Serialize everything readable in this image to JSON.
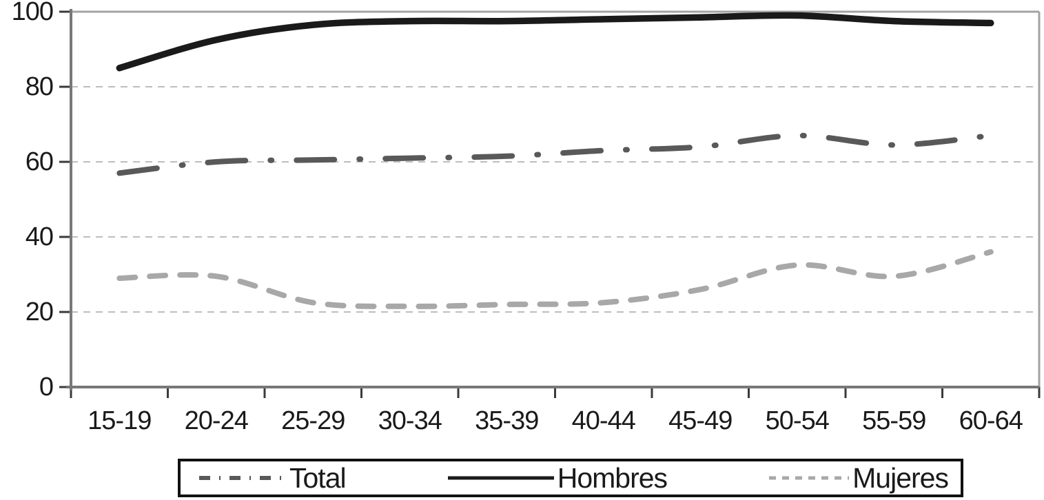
{
  "chart_data": {
    "type": "line",
    "title": "",
    "xlabel": "",
    "ylabel": "",
    "categories": [
      "15-19",
      "20-24",
      "25-29",
      "30-34",
      "35-39",
      "40-44",
      "45-49",
      "50-54",
      "55-59",
      "60-64"
    ],
    "yticks": [
      0,
      20,
      40,
      60,
      80,
      100
    ],
    "ylim": [
      0,
      100
    ],
    "grid": "horizontal dashed gridlines at 20, 40, 60, 80",
    "legend_position": "bottom",
    "series": [
      {
        "name": "Total",
        "style": "dash-dot",
        "color": "#595959",
        "values": [
          57,
          60,
          60.5,
          61,
          61.5,
          63,
          64,
          67,
          64.5,
          67
        ]
      },
      {
        "name": "Hombres",
        "style": "solid",
        "color": "#1a1a1a",
        "values": [
          85,
          92.5,
          96.5,
          97.5,
          97.5,
          98,
          98.5,
          99,
          97.5,
          97
        ]
      },
      {
        "name": "Mujeres",
        "style": "dashed",
        "color": "#a8a8a8",
        "values": [
          29,
          29.5,
          22.5,
          21.5,
          22,
          22.5,
          26,
          32.5,
          29.5,
          36
        ]
      }
    ],
    "colors": {
      "gridline": "#bdbdbd",
      "axis": "#787878",
      "plot_border": "#a3a3a3",
      "tick": "#3a3a3a",
      "text": "#1a1a1a"
    }
  }
}
